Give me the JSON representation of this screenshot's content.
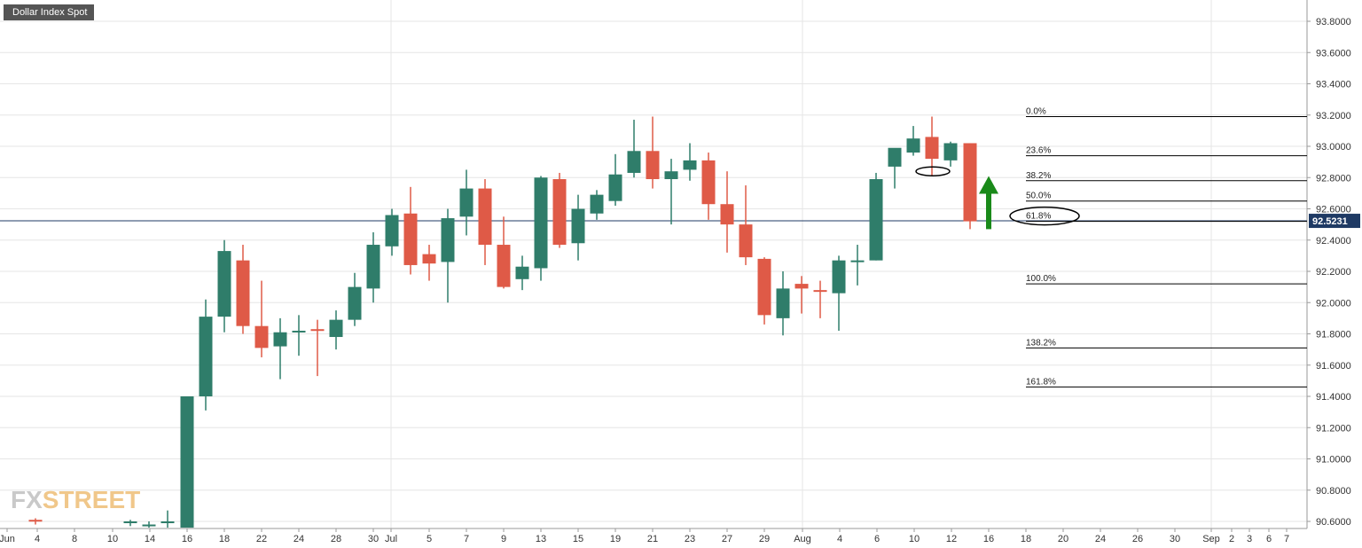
{
  "title": "Dollar Index Spot",
  "watermark": {
    "part1": "FX",
    "part2": "STREET"
  },
  "colors": {
    "up": "#2f7d6a",
    "down": "#df5a47",
    "grid": "#e6e6e6",
    "price_line": "#1f3a64",
    "arrow": "#1a8a1a",
    "price_label_bg": "#1f3a64"
  },
  "chart_data": {
    "type": "candlestick",
    "ylim": [
      90.56,
      93.86
    ],
    "y_ticks": [
      "93.8000",
      "93.6000",
      "93.4000",
      "93.2000",
      "93.0000",
      "92.8000",
      "92.6000",
      "92.4000",
      "92.2000",
      "92.0000",
      "91.8000",
      "91.6000",
      "91.4000",
      "91.2000",
      "91.0000",
      "90.8000",
      "90.6000"
    ],
    "x_labels": [
      "Jun",
      "4",
      "8",
      "10",
      "14",
      "16",
      "18",
      "22",
      "24",
      "28",
      "30",
      "Jul",
      "5",
      "7",
      "9",
      "13",
      "15",
      "19",
      "21",
      "23",
      "27",
      "29",
      "Aug",
      "4",
      "6",
      "10",
      "12",
      "16",
      "18",
      "20",
      "24",
      "26",
      "30",
      "Sep",
      "2",
      "3",
      "6",
      "7"
    ],
    "current_price": "92.5231",
    "candles": [
      {
        "date": "Jun 4",
        "open": 90.61,
        "high": 90.62,
        "low": 90.58,
        "close": 90.6
      },
      {
        "date": "Jun 11",
        "open": 90.59,
        "high": 90.61,
        "low": 90.57,
        "close": 90.6
      },
      {
        "date": "Jun 14",
        "open": 90.58,
        "high": 90.6,
        "low": 90.56,
        "close": 90.58
      },
      {
        "date": "Jun 15",
        "open": 90.59,
        "high": 90.67,
        "low": 90.56,
        "close": 90.6
      },
      {
        "date": "Jun 16",
        "open": 90.56,
        "high": 91.4,
        "low": 90.56,
        "close": 91.4
      },
      {
        "date": "Jun 17",
        "open": 91.4,
        "high": 92.02,
        "low": 91.31,
        "close": 91.91
      },
      {
        "date": "Jun 18",
        "open": 91.91,
        "high": 92.4,
        "low": 91.81,
        "close": 92.33
      },
      {
        "date": "Jun 21",
        "open": 92.27,
        "high": 92.37,
        "low": 91.8,
        "close": 91.85
      },
      {
        "date": "Jun 22",
        "open": 91.85,
        "high": 92.14,
        "low": 91.65,
        "close": 91.71
      },
      {
        "date": "Jun 23",
        "open": 91.72,
        "high": 91.9,
        "low": 91.51,
        "close": 91.81
      },
      {
        "date": "Jun 24",
        "open": 91.82,
        "high": 91.92,
        "low": 91.66,
        "close": 91.82
      },
      {
        "date": "Jun 25",
        "open": 91.83,
        "high": 91.89,
        "low": 91.53,
        "close": 91.82
      },
      {
        "date": "Jun 28",
        "open": 91.78,
        "high": 91.95,
        "low": 91.7,
        "close": 91.89
      },
      {
        "date": "Jun 29",
        "open": 91.89,
        "high": 92.19,
        "low": 91.85,
        "close": 92.1
      },
      {
        "date": "Jun 30",
        "open": 92.09,
        "high": 92.45,
        "low": 92.0,
        "close": 92.37
      },
      {
        "date": "Jul 1",
        "open": 92.36,
        "high": 92.6,
        "low": 92.3,
        "close": 92.56
      },
      {
        "date": "Jul 2",
        "open": 92.57,
        "high": 92.74,
        "low": 92.18,
        "close": 92.24
      },
      {
        "date": "Jul 5",
        "open": 92.31,
        "high": 92.37,
        "low": 92.14,
        "close": 92.25
      },
      {
        "date": "Jul 6",
        "open": 92.26,
        "high": 92.6,
        "low": 92.0,
        "close": 92.54
      },
      {
        "date": "Jul 7",
        "open": 92.55,
        "high": 92.85,
        "low": 92.43,
        "close": 92.73
      },
      {
        "date": "Jul 8",
        "open": 92.73,
        "high": 92.79,
        "low": 92.24,
        "close": 92.37
      },
      {
        "date": "Jul 9",
        "open": 92.37,
        "high": 92.55,
        "low": 92.09,
        "close": 92.1
      },
      {
        "date": "Jul 12",
        "open": 92.15,
        "high": 92.3,
        "low": 92.08,
        "close": 92.23
      },
      {
        "date": "Jul 13",
        "open": 92.22,
        "high": 92.81,
        "low": 92.14,
        "close": 92.8
      },
      {
        "date": "Jul 14",
        "open": 92.79,
        "high": 92.83,
        "low": 92.35,
        "close": 92.37
      },
      {
        "date": "Jul 15",
        "open": 92.38,
        "high": 92.69,
        "low": 92.27,
        "close": 92.6
      },
      {
        "date": "Jul 16",
        "open": 92.57,
        "high": 92.72,
        "low": 92.53,
        "close": 92.69
      },
      {
        "date": "Jul 19",
        "open": 92.65,
        "high": 92.95,
        "low": 92.62,
        "close": 92.82
      },
      {
        "date": "Jul 20",
        "open": 92.83,
        "high": 93.17,
        "low": 92.8,
        "close": 92.97
      },
      {
        "date": "Jul 21",
        "open": 92.97,
        "high": 93.19,
        "low": 92.73,
        "close": 92.79
      },
      {
        "date": "Jul 22",
        "open": 92.79,
        "high": 92.92,
        "low": 92.5,
        "close": 92.84
      },
      {
        "date": "Jul 23",
        "open": 92.85,
        "high": 93.02,
        "low": 92.78,
        "close": 92.91
      },
      {
        "date": "Jul 26",
        "open": 92.91,
        "high": 92.96,
        "low": 92.53,
        "close": 92.63
      },
      {
        "date": "Jul 27",
        "open": 92.63,
        "high": 92.84,
        "low": 92.32,
        "close": 92.5
      },
      {
        "date": "Jul 28",
        "open": 92.5,
        "high": 92.75,
        "low": 92.24,
        "close": 92.29
      },
      {
        "date": "Jul 29",
        "open": 92.28,
        "high": 92.29,
        "low": 91.86,
        "close": 91.92
      },
      {
        "date": "Jul 30",
        "open": 91.9,
        "high": 92.2,
        "low": 91.79,
        "close": 92.09
      },
      {
        "date": "Aug 2",
        "open": 92.12,
        "high": 92.17,
        "low": 91.93,
        "close": 92.09
      },
      {
        "date": "Aug 3",
        "open": 92.08,
        "high": 92.14,
        "low": 91.9,
        "close": 92.07
      },
      {
        "date": "Aug 4",
        "open": 92.06,
        "high": 92.3,
        "low": 91.82,
        "close": 92.27
      },
      {
        "date": "Aug 5",
        "open": 92.27,
        "high": 92.37,
        "low": 92.11,
        "close": 92.27
      },
      {
        "date": "Aug 6",
        "open": 92.27,
        "high": 92.83,
        "low": 92.27,
        "close": 92.79
      },
      {
        "date": "Aug 9",
        "open": 92.87,
        "high": 92.98,
        "low": 92.73,
        "close": 92.99
      },
      {
        "date": "Aug 10",
        "open": 92.96,
        "high": 93.13,
        "low": 92.94,
        "close": 93.05
      },
      {
        "date": "Aug 11",
        "open": 93.06,
        "high": 93.19,
        "low": 92.81,
        "close": 92.92
      },
      {
        "date": "Aug 12",
        "open": 92.91,
        "high": 93.03,
        "low": 92.87,
        "close": 93.02
      },
      {
        "date": "Aug 13",
        "open": 93.02,
        "high": 93.02,
        "low": 92.47,
        "close": 92.52
      }
    ],
    "fibonacci": [
      {
        "label": "0.0%",
        "value": 93.19
      },
      {
        "label": "23.6%",
        "value": 92.94
      },
      {
        "label": "38.2%",
        "value": 92.78
      },
      {
        "label": "50.0%",
        "value": 92.65
      },
      {
        "label": "61.8%",
        "value": 92.52
      },
      {
        "label": "100.0%",
        "value": 92.12
      },
      {
        "label": "138.2%",
        "value": 91.71
      },
      {
        "label": "161.8%",
        "value": 91.46
      }
    ],
    "annotations": [
      {
        "type": "ellipse",
        "near_date": "Aug 11",
        "near_price": 92.84
      },
      {
        "type": "ellipse",
        "around_label": "61.8%"
      },
      {
        "type": "up-arrow",
        "from_price": 92.47,
        "to_price": 92.81
      }
    ]
  }
}
